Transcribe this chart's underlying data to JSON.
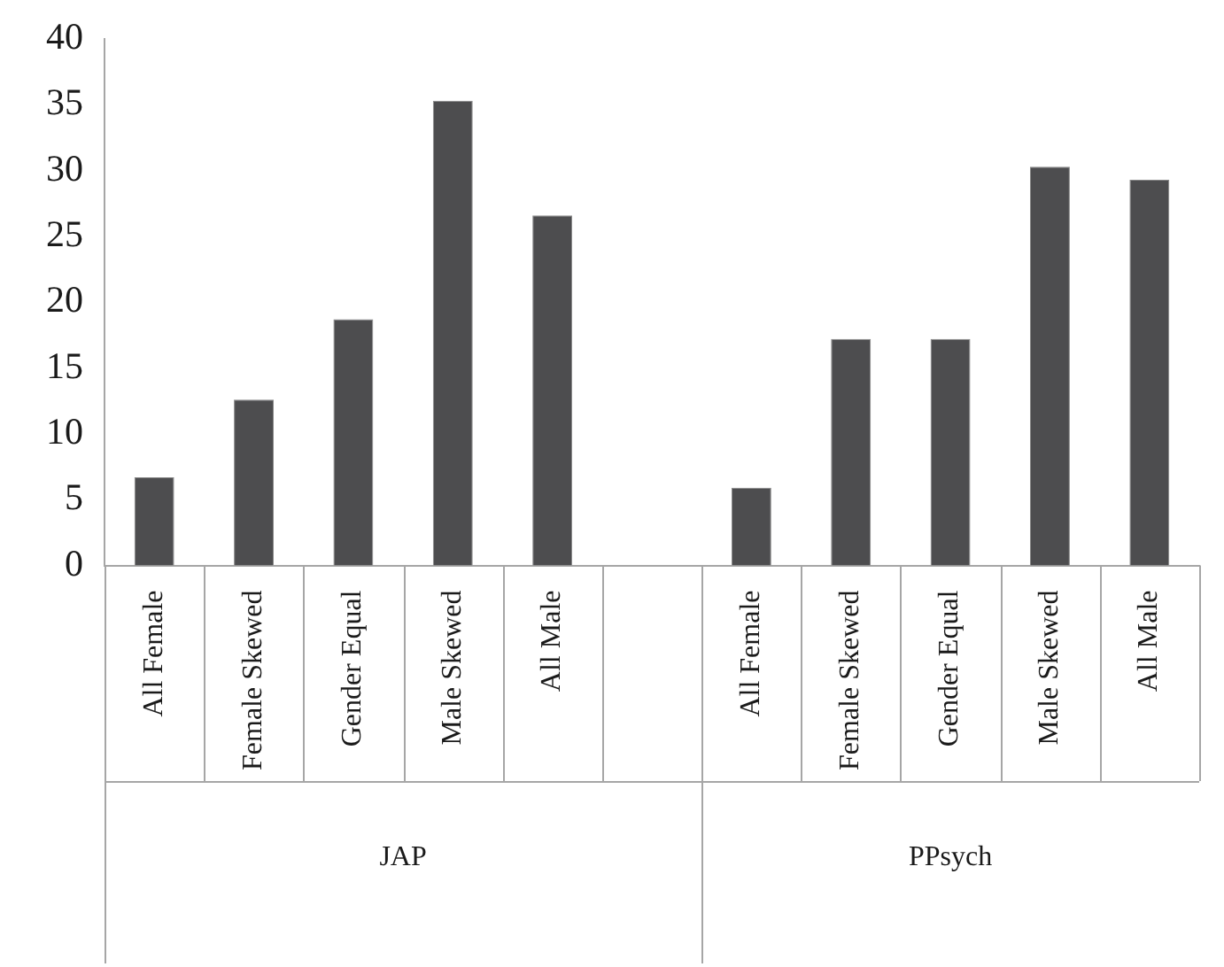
{
  "chart_data": {
    "type": "bar",
    "categories": [
      "All Female",
      "Female Skewed",
      "Gender Equal",
      "Male Skewed",
      "All Male",
      null,
      "All Female",
      "Female Skewed",
      "Gender Equal",
      "Male Skewed",
      "All Male"
    ],
    "values": [
      6.7,
      12.6,
      18.7,
      35.3,
      26.6,
      null,
      5.9,
      17.2,
      17.2,
      30.3,
      29.3
    ],
    "color": "#4d4d4f",
    "ylim": [
      0,
      40
    ],
    "yticks": [
      0,
      5,
      10,
      15,
      20,
      25,
      30,
      35,
      40
    ],
    "grid": false,
    "legend": false,
    "annotations": [
      "JAP",
      "PPsych"
    ]
  }
}
